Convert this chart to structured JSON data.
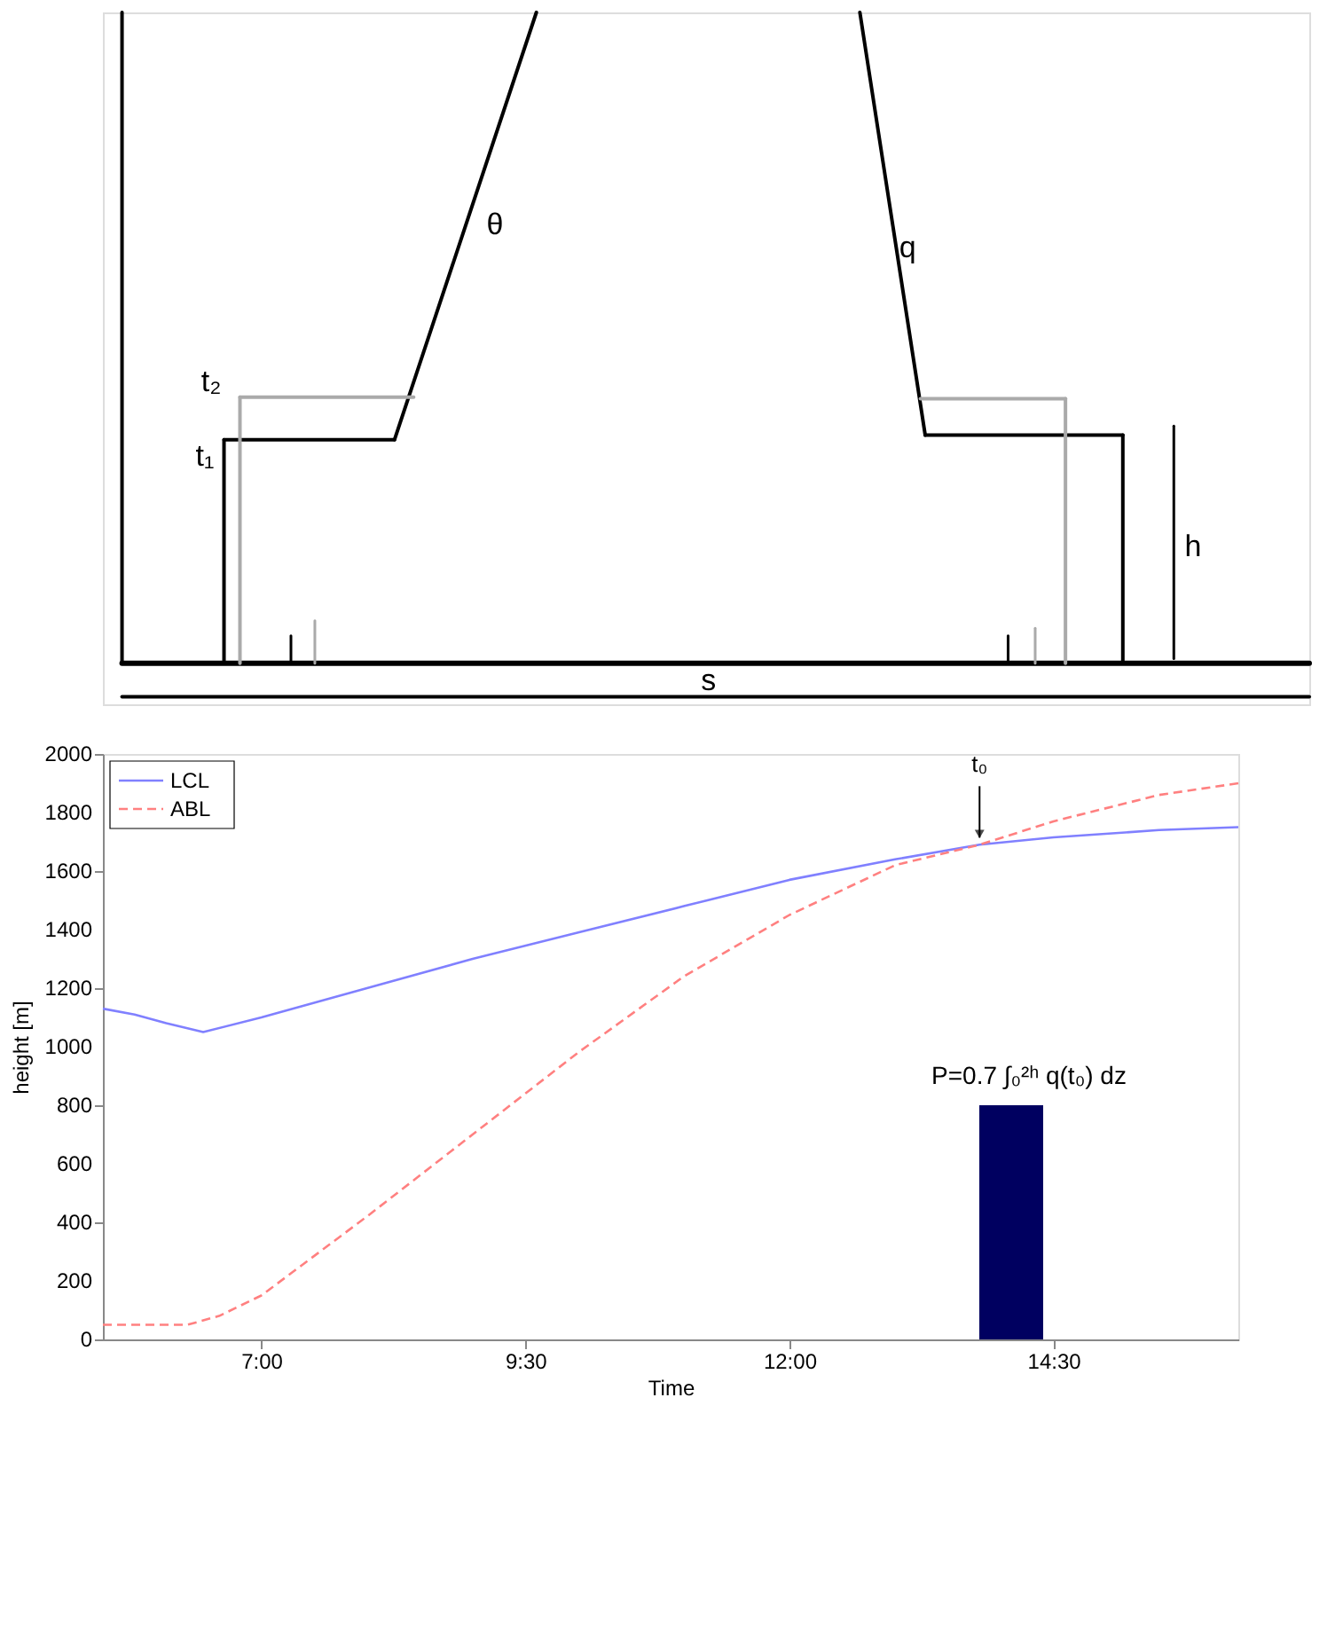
{
  "chart_data": [
    {
      "type": "other",
      "annotations": [
        "θ",
        "q",
        "t₂",
        "t₁",
        "h",
        "s"
      ]
    },
    {
      "type": "line",
      "xlabel": "Time",
      "ylabel": "height [m]",
      "legend": "top left",
      "grid": false,
      "xlim": [
        5.5,
        16.25
      ],
      "xticks": [
        {
          "value": 7,
          "label": "7:00"
        },
        {
          "value": 9.5,
          "label": "9:30"
        },
        {
          "value": 12,
          "label": "12:00"
        },
        {
          "value": 14.5,
          "label": "14:30"
        }
      ],
      "ylim": [
        0,
        2000
      ],
      "yticks": [
        0,
        200,
        400,
        600,
        800,
        1000,
        1200,
        1400,
        1600,
        1800,
        2000
      ],
      "series": [
        {
          "name": "LCL",
          "color": "#8080ff",
          "line_style": "solid",
          "x": [
            5.5,
            5.8,
            6.1,
            6.45,
            7,
            8,
            9,
            10,
            11,
            12,
            13,
            13.8,
            14.5,
            15.5,
            16.25
          ],
          "values": [
            1130,
            1110,
            1080,
            1050,
            1100,
            1200,
            1300,
            1390,
            1480,
            1570,
            1640,
            1690,
            1715,
            1740,
            1750
          ]
        },
        {
          "name": "ABL",
          "color": "#ff8080",
          "line_style": "dashed",
          "x": [
            5.5,
            6.3,
            6.6,
            7,
            8,
            9,
            10,
            11,
            12,
            13,
            13.8,
            14.5,
            15.5,
            16.25
          ],
          "values": [
            50,
            50,
            80,
            150,
            420,
            700,
            980,
            1240,
            1450,
            1620,
            1690,
            1770,
            1860,
            1900
          ]
        },
        {
          "type": "bar",
          "color": "#000060",
          "x": [
            14.1
          ],
          "values": [
            800
          ]
        }
      ],
      "annotations": [
        {
          "text": "t₀",
          "x": 13.8,
          "y": 1690
        },
        "P=0.7 ∫₀²ʰ q(t₀) dz"
      ]
    }
  ]
}
